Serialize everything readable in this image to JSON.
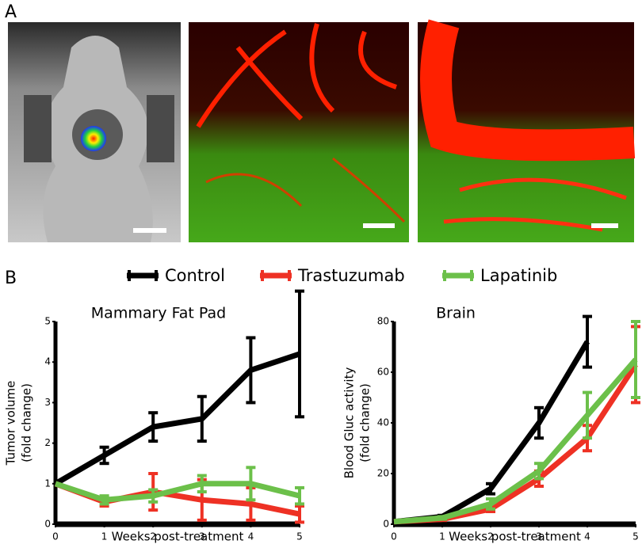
{
  "panel_labels": [
    "A",
    "B"
  ],
  "legend": [
    {
      "name": "Control",
      "color": "#000000"
    },
    {
      "name": "Trastuzumab",
      "color": "#ee3124"
    },
    {
      "name": "Lapatinib",
      "color": "#6cc04a"
    }
  ],
  "chart_data": [
    {
      "type": "line",
      "title": "Mammary Fat Pad",
      "x_label": "Weeks post-treatment",
      "y_label": [
        "Tumor volume",
        "(fold change)"
      ],
      "x": [
        0,
        1,
        2,
        3,
        4,
        5
      ],
      "xlim": [
        0,
        5
      ],
      "xticks": [
        0,
        1,
        2,
        3,
        4,
        5
      ],
      "ylim": [
        0,
        5
      ],
      "yticks": [
        0,
        1,
        2,
        3,
        4,
        5
      ],
      "series": [
        {
          "color": "#000000",
          "values": [
            1,
            1.7,
            2.4,
            2.6,
            3.8,
            4.2
          ],
          "errors": [
            0,
            0.2,
            0.35,
            0.55,
            0.8,
            1.55
          ]
        },
        {
          "color": "#ee3124",
          "values": [
            1,
            0.55,
            0.8,
            0.6,
            0.5,
            0.25
          ],
          "errors": [
            0,
            0.1,
            0.45,
            0.5,
            0.4,
            0.2
          ]
        },
        {
          "color": "#6cc04a",
          "values": [
            1,
            0.6,
            0.7,
            1.0,
            1.0,
            0.7
          ],
          "errors": [
            0,
            0.1,
            0.15,
            0.2,
            0.4,
            0.2
          ]
        }
      ]
    },
    {
      "type": "line",
      "title": "Brain",
      "x_label": "Weeks post-treatment",
      "y_label": [
        "Blood Gluc activity",
        "(fold change)"
      ],
      "x": [
        0,
        1,
        2,
        3,
        4,
        5
      ],
      "xlim": [
        0,
        5
      ],
      "xticks": [
        0,
        1,
        2,
        3,
        4,
        5
      ],
      "ylim": [
        0,
        80
      ],
      "yticks": [
        0,
        20,
        40,
        60,
        80
      ],
      "series": [
        {
          "color": "#000000",
          "values": [
            1,
            3,
            14,
            40,
            72,
            null
          ],
          "errors": [
            0,
            0.5,
            2,
            6,
            10,
            null
          ]
        },
        {
          "color": "#ee3124",
          "values": [
            1,
            2,
            6,
            18,
            34,
            63
          ],
          "errors": [
            0,
            0.5,
            1,
            3,
            5,
            15
          ]
        },
        {
          "color": "#6cc04a",
          "values": [
            1,
            2.5,
            8,
            21,
            43,
            65
          ],
          "errors": [
            0,
            0.5,
            2,
            3,
            9,
            15
          ]
        }
      ]
    }
  ]
}
